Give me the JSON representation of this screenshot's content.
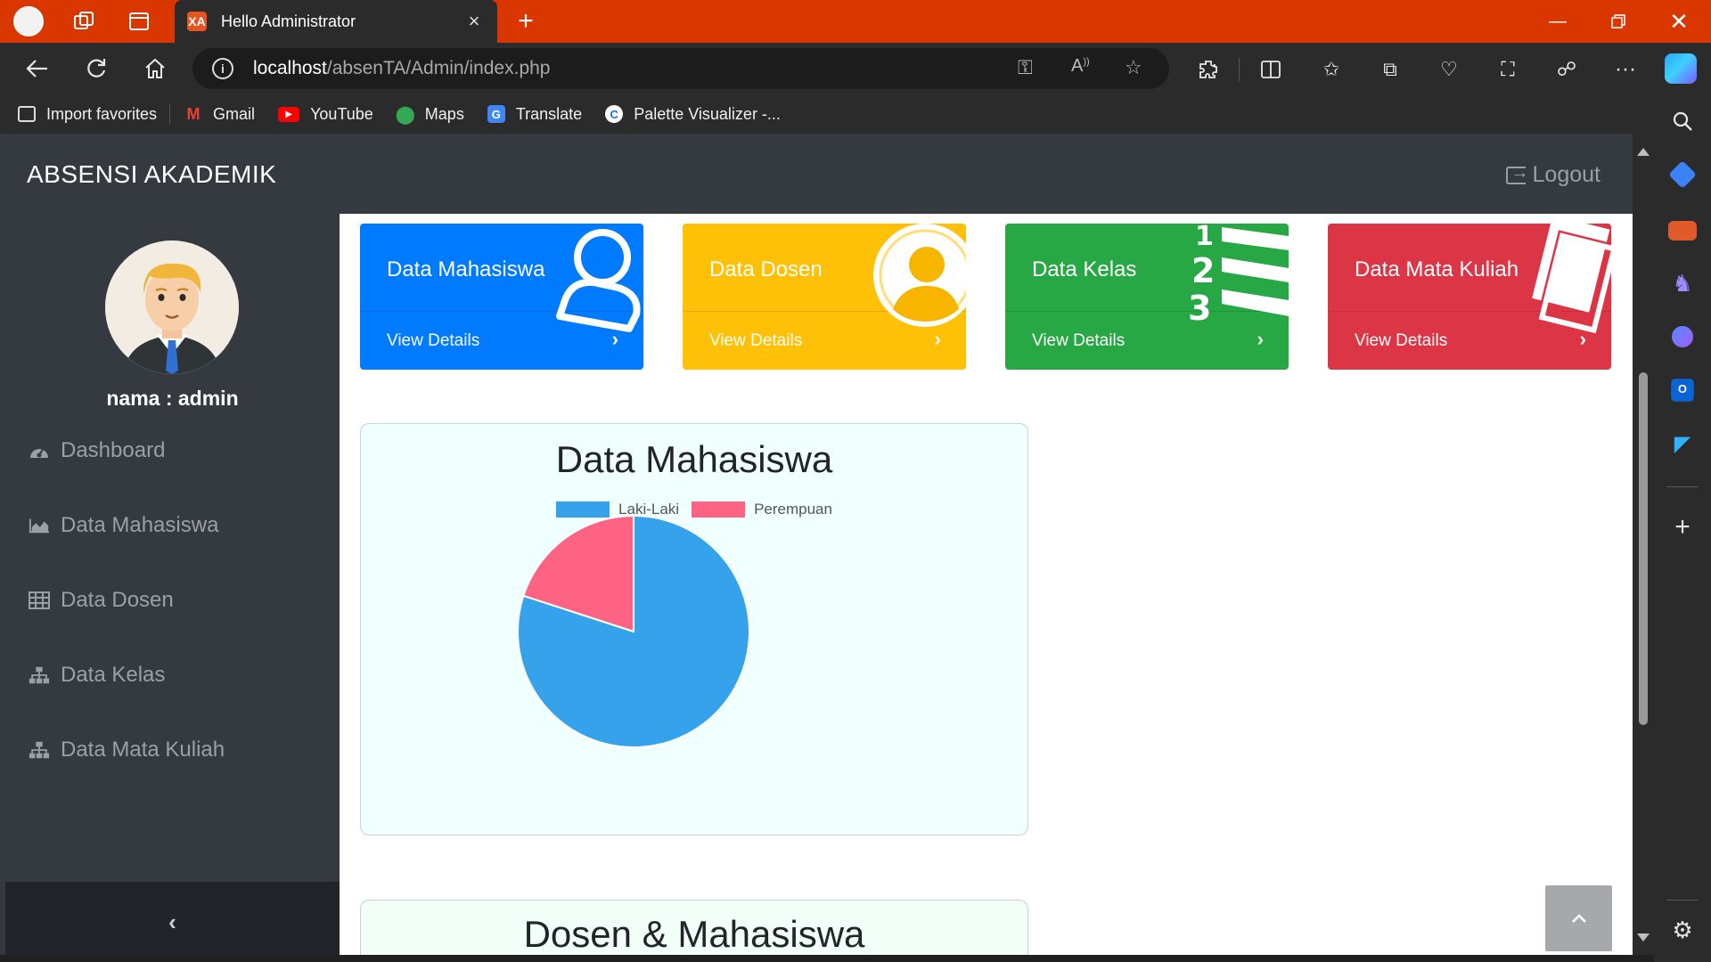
{
  "browser": {
    "tab_title": "Hello Administrator",
    "tab_favicon": "XA",
    "new_tab": "+",
    "url_host": "localhost",
    "url_path": "/absenTA/Admin/index.php",
    "bookmarks": [
      {
        "label": "Import favorites",
        "icon": "import-icon"
      },
      {
        "label": "Gmail",
        "icon": "gmail-icon"
      },
      {
        "label": "YouTube",
        "icon": "youtube-icon"
      },
      {
        "label": "Maps",
        "icon": "maps-icon"
      },
      {
        "label": "Translate",
        "icon": "translate-icon"
      },
      {
        "label": "Palette Visualizer -...",
        "icon": "palette-icon"
      }
    ]
  },
  "app": {
    "brand": "ABSENSI AKADEMIK",
    "logout_label": "Logout",
    "user_label": "nama : admin",
    "menu": [
      {
        "label": "Dashboard",
        "icon": "dashboard-icon"
      },
      {
        "label": "Data Mahasiswa",
        "icon": "area-chart-icon"
      },
      {
        "label": "Data Dosen",
        "icon": "table-icon"
      },
      {
        "label": "Data Kelas",
        "icon": "sitemap-icon"
      },
      {
        "label": "Data Mata Kuliah",
        "icon": "sitemap-icon"
      }
    ],
    "collapse_label": "‹"
  },
  "cards": [
    {
      "title": "Data Mahasiswa",
      "link": "View Details",
      "color": "#007bff"
    },
    {
      "title": "Data Dosen",
      "link": "View Details",
      "color": "#ffc107"
    },
    {
      "title": "Data Kelas",
      "link": "View Details",
      "color": "#28a745"
    },
    {
      "title": "Data Mata Kuliah",
      "link": "View Details",
      "color": "#dc3545"
    }
  ],
  "card_chevron": "›",
  "chart_data": {
    "type": "pie",
    "title": "Data Mahasiswa",
    "categories": [
      "Laki-Laki",
      "Perempuan"
    ],
    "values": [
      80,
      20
    ],
    "colors": [
      "#36a2eb",
      "#ff6384"
    ],
    "legend": "top"
  },
  "chart2": {
    "title": "Dosen & Mahasiswa"
  },
  "back_to_top": "^"
}
